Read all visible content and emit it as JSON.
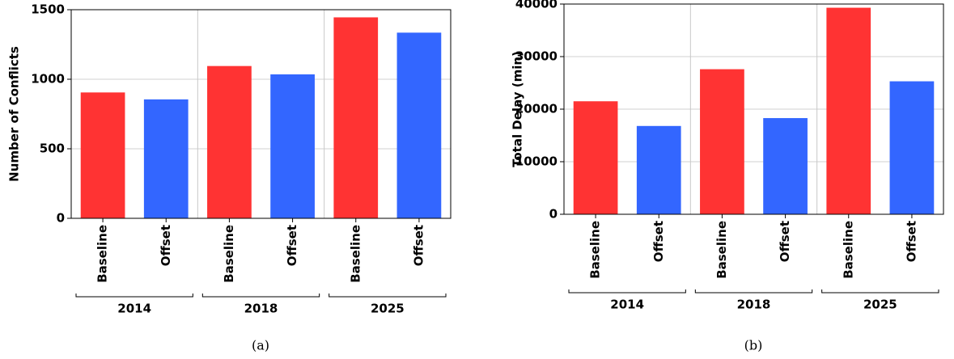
{
  "chart_data": [
    {
      "type": "bar",
      "caption": "(a)",
      "ylabel": "Number of Conflicts",
      "groups": [
        "2014",
        "2018",
        "2025"
      ],
      "series": [
        {
          "name": "Baseline",
          "color": "#ff3333",
          "values": [
            905,
            1095,
            1445
          ]
        },
        {
          "name": "Offset",
          "color": "#3366ff",
          "values": [
            855,
            1035,
            1335
          ]
        }
      ],
      "ylim": [
        0,
        1500
      ],
      "yticks": [
        0,
        500,
        1000,
        1500
      ],
      "grid": true
    },
    {
      "type": "bar",
      "caption": "(b)",
      "ylabel": "Total Delay (min)",
      "groups": [
        "2014",
        "2018",
        "2025"
      ],
      "series": [
        {
          "name": "Baseline",
          "color": "#ff3333",
          "values": [
            21500,
            27600,
            39300
          ]
        },
        {
          "name": "Offset",
          "color": "#3366ff",
          "values": [
            16800,
            18300,
            25300
          ]
        }
      ],
      "ylim": [
        0,
        40000
      ],
      "yticks": [
        0,
        10000,
        20000,
        30000,
        40000
      ],
      "grid": true
    }
  ]
}
